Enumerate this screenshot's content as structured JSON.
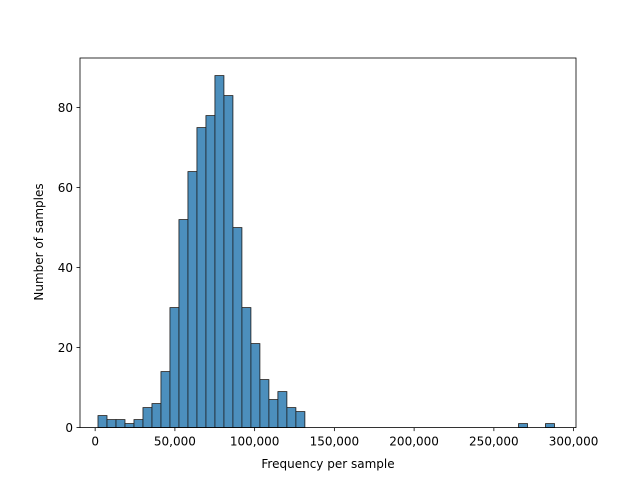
{
  "chart_data": {
    "type": "bar",
    "title": "",
    "xlabel": "Frequency per sample",
    "ylabel": "Number of samples",
    "xlim": [
      -9500,
      301500
    ],
    "ylim": [
      0,
      92.4
    ],
    "bin_width": 5640,
    "x_ticks": [
      0,
      50000,
      100000,
      150000,
      200000,
      250000,
      300000
    ],
    "x_tick_labels": [
      "0",
      "50,000",
      "100,000",
      "150,000",
      "200,000",
      "250,000",
      "300,000"
    ],
    "y_ticks": [
      0,
      20,
      40,
      60,
      80
    ],
    "y_tick_labels": [
      "0",
      "20",
      "40",
      "60",
      "80"
    ],
    "bins": [
      {
        "x": 4600,
        "count": 3
      },
      {
        "x": 10240,
        "count": 2
      },
      {
        "x": 15880,
        "count": 2
      },
      {
        "x": 21520,
        "count": 1
      },
      {
        "x": 27160,
        "count": 2
      },
      {
        "x": 32800,
        "count": 5
      },
      {
        "x": 38440,
        "count": 6
      },
      {
        "x": 44080,
        "count": 14
      },
      {
        "x": 49720,
        "count": 30
      },
      {
        "x": 55360,
        "count": 52
      },
      {
        "x": 61000,
        "count": 64
      },
      {
        "x": 66640,
        "count": 75
      },
      {
        "x": 72280,
        "count": 78
      },
      {
        "x": 77920,
        "count": 88
      },
      {
        "x": 83560,
        "count": 83
      },
      {
        "x": 89200,
        "count": 50
      },
      {
        "x": 94840,
        "count": 30
      },
      {
        "x": 100480,
        "count": 21
      },
      {
        "x": 106120,
        "count": 12
      },
      {
        "x": 111760,
        "count": 7
      },
      {
        "x": 117400,
        "count": 9
      },
      {
        "x": 123040,
        "count": 5
      },
      {
        "x": 128680,
        "count": 4
      },
      {
        "x": 268280,
        "count": 1
      },
      {
        "x": 285200,
        "count": 1
      }
    ],
    "bar_color": "#4c8fbd",
    "edge_color": "#1a1a1a",
    "grid": false,
    "legend": false
  }
}
